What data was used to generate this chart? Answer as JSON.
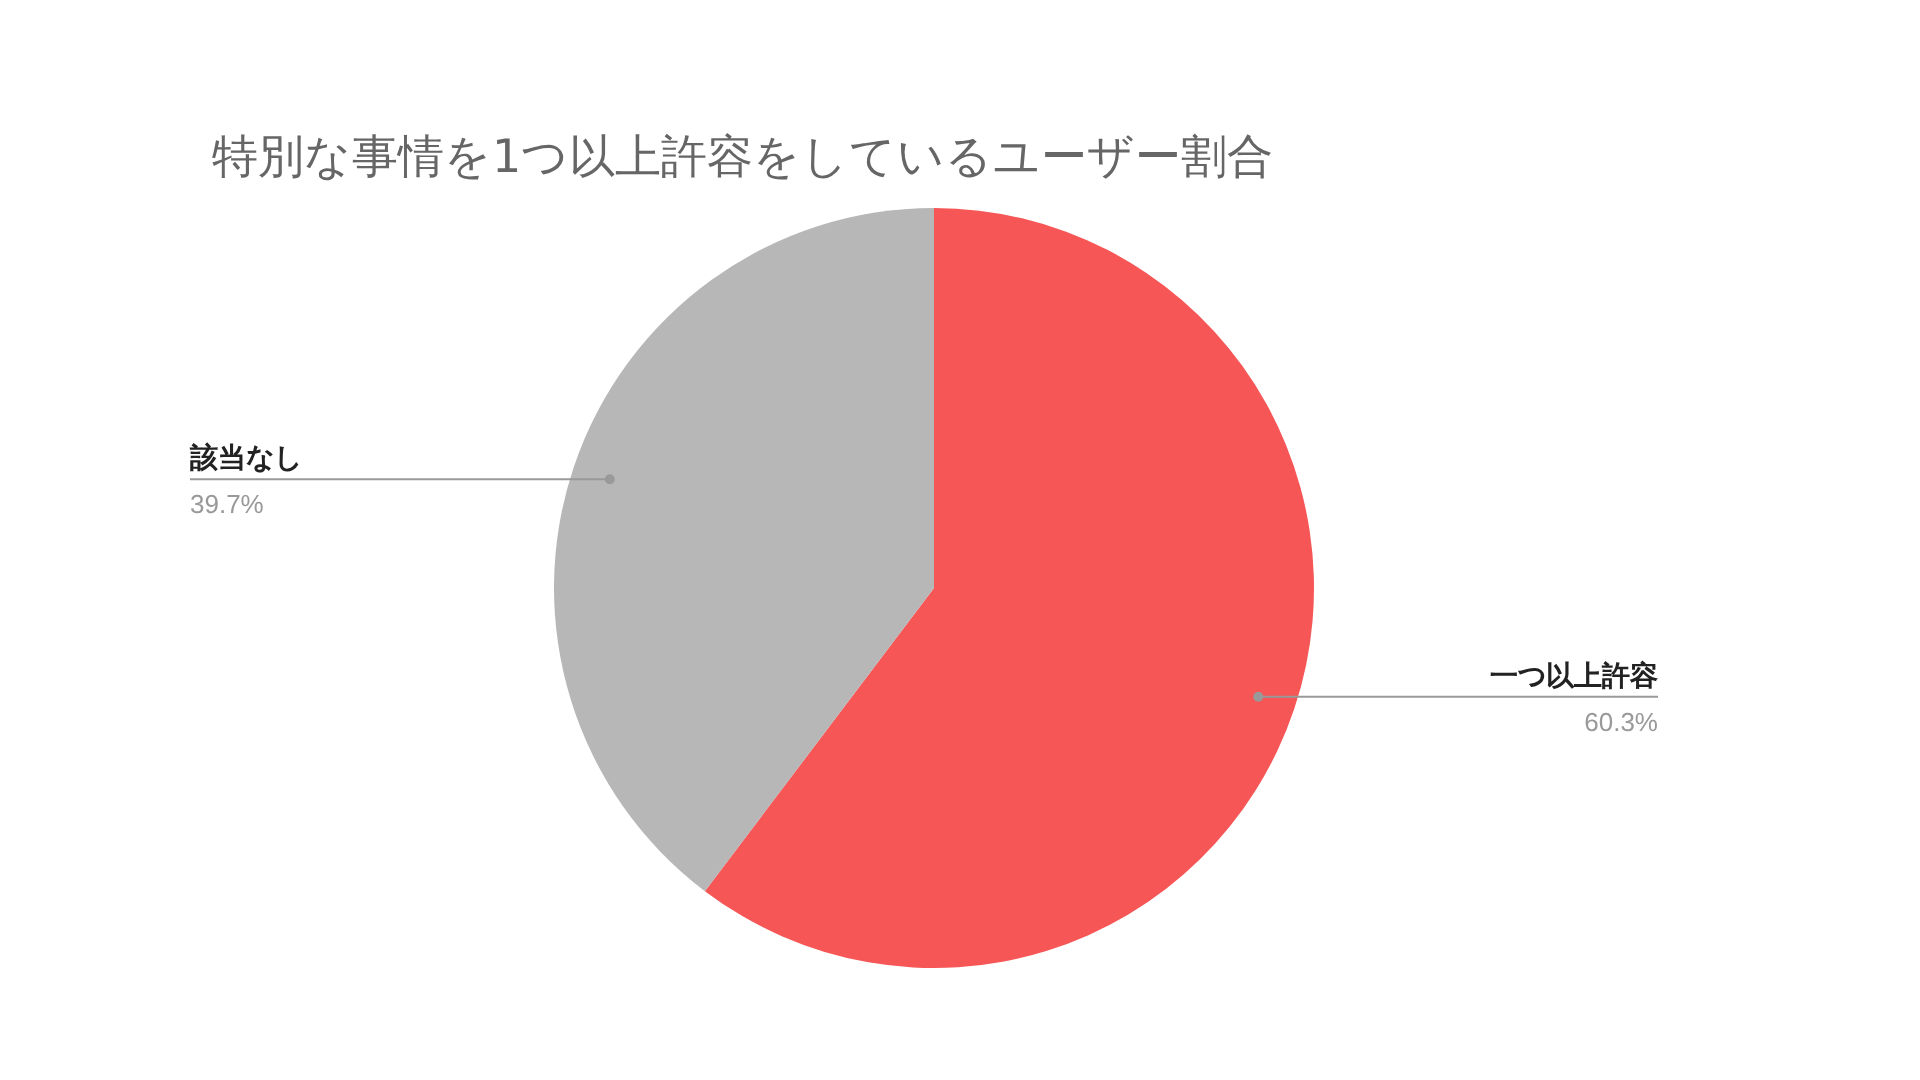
{
  "chart_data": {
    "type": "pie",
    "title": "特別な事情を1つ以上許容をしているユーザー割合",
    "categories": [
      "一つ以上許容",
      "該当なし"
    ],
    "values": [
      60.3,
      39.7
    ],
    "colors": [
      "#f75656",
      "#b7b7b7"
    ],
    "value_labels": [
      "60.3%",
      "39.7%"
    ],
    "legend": false
  }
}
